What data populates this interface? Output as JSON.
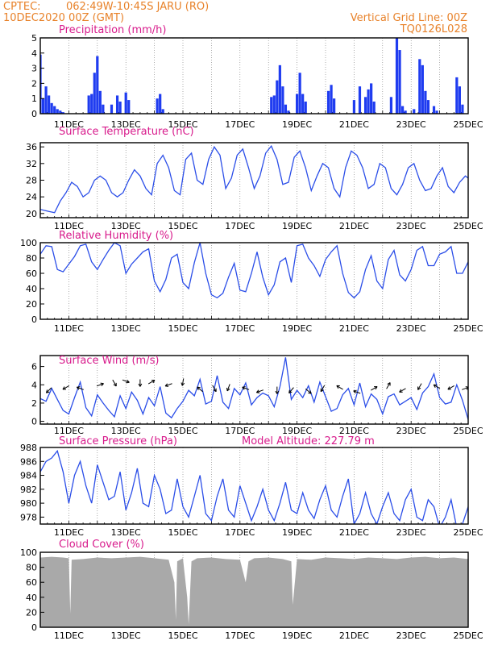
{
  "header": {
    "source": "CPTEC:",
    "location": "062:49W-10:45S   JARU (RO)",
    "datetime": "10DEC2020 00Z (GMT)",
    "grid_note": "Vertical Grid Line: 00Z",
    "model": "TQ0126L028"
  },
  "colors": {
    "header": "#e8822a",
    "title": "#d81b8c",
    "series": "#2b4ee8",
    "bars": "#1f3cf0",
    "cloud": "#a9a9a9"
  },
  "x_labels": [
    "11DEC",
    "13DEC",
    "15DEC",
    "17DEC",
    "19DEC",
    "21DEC",
    "23DEC",
    "25DEC"
  ],
  "chart_data": [
    {
      "id": "precip",
      "type": "bar",
      "title": "Precipitation (mm/h)",
      "ylim": [
        0,
        5
      ],
      "yticks": [
        "0",
        "1",
        "2",
        "3",
        "4",
        "5"
      ],
      "x_range_days": [
        10,
        25
      ],
      "x": [
        10.0,
        10.1,
        10.2,
        10.3,
        10.4,
        10.5,
        10.6,
        10.7,
        10.8,
        11.7,
        11.8,
        11.9,
        12.0,
        12.1,
        12.2,
        12.5,
        12.7,
        12.8,
        13.0,
        13.1,
        14.1,
        14.2,
        14.3,
        18.1,
        18.2,
        18.3,
        18.4,
        18.5,
        18.6,
        18.7,
        19.0,
        19.1,
        19.2,
        19.3,
        20.1,
        20.2,
        20.3,
        21.0,
        21.2,
        21.4,
        21.5,
        21.6,
        21.7,
        22.3,
        22.5,
        22.6,
        22.7,
        22.8,
        23.1,
        23.3,
        23.4,
        23.5,
        23.6,
        23.8,
        23.9,
        24.6,
        24.7,
        24.8
      ],
      "values": [
        3.9,
        1.0,
        1.8,
        1.2,
        0.7,
        0.5,
        0.3,
        0.2,
        0.1,
        1.2,
        1.3,
        2.7,
        3.8,
        1.5,
        0.6,
        0.6,
        1.2,
        0.8,
        1.4,
        0.9,
        1.0,
        1.3,
        0.3,
        1.1,
        1.2,
        2.2,
        3.2,
        1.8,
        0.6,
        0.2,
        1.3,
        2.7,
        1.3,
        0.8,
        1.5,
        1.9,
        1.0,
        0.9,
        1.8,
        1.1,
        1.6,
        2.0,
        0.8,
        1.1,
        5.0,
        4.2,
        0.5,
        0.2,
        0.3,
        3.6,
        3.2,
        1.5,
        0.9,
        0.5,
        0.2,
        2.4,
        1.8,
        0.6
      ]
    },
    {
      "id": "temp",
      "type": "line",
      "title": "Surface Temperature (nC)",
      "ylim": [
        19,
        37
      ],
      "yticks": [
        "20",
        "24",
        "28",
        "32",
        "36"
      ],
      "ytick_values": [
        20,
        24,
        28,
        32,
        36
      ],
      "x": [
        10.0,
        10.3,
        10.5,
        10.7,
        10.9,
        11.1,
        11.3,
        11.5,
        11.7,
        11.9,
        12.1,
        12.3,
        12.5,
        12.7,
        12.9,
        13.1,
        13.3,
        13.5,
        13.7,
        13.9,
        14.1,
        14.3,
        14.5,
        14.7,
        14.9,
        15.1,
        15.3,
        15.5,
        15.7,
        15.9,
        16.1,
        16.3,
        16.5,
        16.7,
        16.9,
        17.1,
        17.3,
        17.5,
        17.7,
        17.9,
        18.1,
        18.3,
        18.5,
        18.7,
        18.9,
        19.1,
        19.3,
        19.5,
        19.7,
        19.9,
        20.1,
        20.3,
        20.5,
        20.7,
        20.9,
        21.1,
        21.3,
        21.5,
        21.7,
        21.9,
        22.1,
        22.3,
        22.5,
        22.7,
        22.9,
        23.1,
        23.3,
        23.5,
        23.7,
        23.9,
        24.1,
        24.3,
        24.5,
        24.7,
        24.9,
        25.0
      ],
      "values": [
        21,
        20.5,
        20.2,
        23,
        25,
        27.5,
        26.5,
        24,
        25,
        28,
        29,
        28,
        25,
        24,
        25,
        28,
        30.5,
        29,
        26,
        24.5,
        32,
        34,
        31,
        25.5,
        24.5,
        33,
        34.5,
        28,
        27,
        33,
        36,
        34,
        26,
        28.5,
        34,
        35.5,
        31,
        26,
        29,
        34.5,
        36.2,
        33,
        27,
        27.5,
        33.5,
        35,
        31,
        25.5,
        29,
        32,
        31,
        26,
        24,
        31,
        35,
        34,
        31,
        26,
        27,
        32,
        31,
        26,
        24.5,
        27,
        31,
        32,
        28,
        25.5,
        26,
        29,
        31,
        26.5,
        25,
        27.5,
        29,
        28.5
      ]
    },
    {
      "id": "rh",
      "type": "line",
      "title": "Relative Humidity (%)",
      "ylim": [
        0,
        100
      ],
      "yticks": [
        "0",
        "20",
        "40",
        "60",
        "80",
        "100"
      ],
      "ytick_values": [
        0,
        20,
        40,
        60,
        80,
        100
      ],
      "x": [
        10.0,
        10.2,
        10.4,
        10.6,
        10.8,
        11.0,
        11.2,
        11.4,
        11.6,
        11.8,
        12.0,
        12.2,
        12.4,
        12.6,
        12.8,
        13.0,
        13.2,
        13.4,
        13.6,
        13.8,
        14.0,
        14.2,
        14.4,
        14.6,
        14.8,
        15.0,
        15.2,
        15.4,
        15.6,
        15.8,
        16.0,
        16.2,
        16.4,
        16.6,
        16.8,
        17.0,
        17.2,
        17.4,
        17.6,
        17.8,
        18.0,
        18.2,
        18.4,
        18.6,
        18.8,
        19.0,
        19.2,
        19.4,
        19.6,
        19.8,
        20.0,
        20.2,
        20.4,
        20.6,
        20.8,
        21.0,
        21.2,
        21.4,
        21.6,
        21.8,
        22.0,
        22.2,
        22.4,
        22.6,
        22.8,
        23.0,
        23.2,
        23.4,
        23.6,
        23.8,
        24.0,
        24.2,
        24.4,
        24.6,
        24.8,
        25.0
      ],
      "values": [
        85,
        96,
        95,
        65,
        62,
        72,
        82,
        96,
        98,
        75,
        65,
        78,
        90,
        100,
        96,
        60,
        72,
        80,
        88,
        92,
        50,
        36,
        52,
        80,
        85,
        48,
        40,
        74,
        100,
        60,
        32,
        28,
        34,
        55,
        73,
        38,
        36,
        60,
        88,
        55,
        32,
        45,
        75,
        80,
        48,
        96,
        98,
        80,
        70,
        56,
        78,
        88,
        96,
        60,
        35,
        28,
        36,
        65,
        83,
        50,
        40,
        78,
        90,
        58,
        50,
        65,
        90,
        95,
        70,
        70,
        85,
        88,
        95,
        60,
        60,
        75
      ]
    },
    {
      "id": "wind",
      "type": "line",
      "title": "Surface Wind (m/s)",
      "ylim": [
        -0.3,
        7.2
      ],
      "yticks": [
        "0",
        "2",
        "4",
        "6"
      ],
      "ytick_values": [
        0,
        2,
        4,
        6
      ],
      "x": [
        10.0,
        10.2,
        10.4,
        10.6,
        10.8,
        11.0,
        11.2,
        11.4,
        11.6,
        11.8,
        12.0,
        12.2,
        12.4,
        12.6,
        12.8,
        13.0,
        13.2,
        13.4,
        13.6,
        13.8,
        14.0,
        14.2,
        14.4,
        14.6,
        14.8,
        15.0,
        15.2,
        15.4,
        15.6,
        15.8,
        16.0,
        16.2,
        16.4,
        16.6,
        16.8,
        17.0,
        17.2,
        17.4,
        17.6,
        17.8,
        18.0,
        18.2,
        18.4,
        18.6,
        18.8,
        19.0,
        19.2,
        19.4,
        19.6,
        19.8,
        20.0,
        20.2,
        20.4,
        20.6,
        20.8,
        21.0,
        21.2,
        21.4,
        21.6,
        21.8,
        22.0,
        22.2,
        22.4,
        22.6,
        22.8,
        23.0,
        23.2,
        23.4,
        23.6,
        23.8,
        24.0,
        24.2,
        24.4,
        24.6,
        24.8,
        25.0
      ],
      "values": [
        2.5,
        2.2,
        3.6,
        2.4,
        1.2,
        0.8,
        2.6,
        4.3,
        1.5,
        0.6,
        2.9,
        2.0,
        1.2,
        0.5,
        2.8,
        1.4,
        3.2,
        2.3,
        0.8,
        2.6,
        1.7,
        3.8,
        0.9,
        0.4,
        1.4,
        2.2,
        3.4,
        2.8,
        4.6,
        1.9,
        2.2,
        5.0,
        2.1,
        1.4,
        3.6,
        2.9,
        4.2,
        1.8,
        2.6,
        3.1,
        2.8,
        1.6,
        3.8,
        7.0,
        2.4,
        3.4,
        2.6,
        3.9,
        2.1,
        4.3,
        2.7,
        1.1,
        1.4,
        2.9,
        3.6,
        1.8,
        4.2,
        1.6,
        3.0,
        2.4,
        0.8,
        2.7,
        3.0,
        1.8,
        2.2,
        2.6,
        1.3,
        3.1,
        3.8,
        5.2,
        2.6,
        1.9,
        2.1,
        4.0,
        2.3,
        0.2
      ],
      "arrows": [
        {
          "x": 10.3,
          "y": 3.4,
          "dir": 225
        },
        {
          "x": 10.9,
          "y": 3.7,
          "dir": 210
        },
        {
          "x": 11.4,
          "y": 3.6,
          "dir": 160
        },
        {
          "x": 12.1,
          "y": 4.0,
          "dir": 20
        },
        {
          "x": 12.6,
          "y": 4.2,
          "dir": 300
        },
        {
          "x": 13.0,
          "y": 4.4,
          "dir": 340
        },
        {
          "x": 13.5,
          "y": 4.2,
          "dir": 270
        },
        {
          "x": 13.9,
          "y": 4.3,
          "dir": 30
        },
        {
          "x": 14.5,
          "y": 4.0,
          "dir": 200
        },
        {
          "x": 15.0,
          "y": 4.3,
          "dir": 260
        },
        {
          "x": 15.6,
          "y": 3.5,
          "dir": 140
        },
        {
          "x": 16.1,
          "y": 3.6,
          "dir": 300
        },
        {
          "x": 16.6,
          "y": 3.7,
          "dir": 250
        },
        {
          "x": 17.2,
          "y": 3.6,
          "dir": 160
        },
        {
          "x": 17.7,
          "y": 3.3,
          "dir": 200
        },
        {
          "x": 18.3,
          "y": 3.4,
          "dir": 270
        },
        {
          "x": 18.8,
          "y": 3.4,
          "dir": 230
        },
        {
          "x": 19.4,
          "y": 3.3,
          "dir": 320
        },
        {
          "x": 19.9,
          "y": 3.6,
          "dir": 240
        },
        {
          "x": 20.5,
          "y": 3.7,
          "dir": 150
        },
        {
          "x": 21.1,
          "y": 3.2,
          "dir": 160
        },
        {
          "x": 21.7,
          "y": 3.6,
          "dir": 30
        },
        {
          "x": 22.2,
          "y": 3.9,
          "dir": 60
        },
        {
          "x": 22.7,
          "y": 3.4,
          "dir": 210
        },
        {
          "x": 23.3,
          "y": 3.8,
          "dir": 240
        },
        {
          "x": 23.9,
          "y": 3.8,
          "dir": 150
        },
        {
          "x": 24.4,
          "y": 3.7,
          "dir": 210
        },
        {
          "x": 24.9,
          "y": 3.6,
          "dir": 20
        }
      ]
    },
    {
      "id": "pressure",
      "type": "line",
      "title": "Surface Pressure (hPa)",
      "annotation": "Model Altitude: 227.79 m",
      "ylim": [
        977,
        988
      ],
      "yticks": [
        "978",
        "980",
        "982",
        "984",
        "986",
        "988"
      ],
      "ytick_values": [
        978,
        980,
        982,
        984,
        986,
        988
      ],
      "x": [
        10.0,
        10.2,
        10.4,
        10.6,
        10.8,
        11.0,
        11.2,
        11.4,
        11.6,
        11.8,
        12.0,
        12.2,
        12.4,
        12.6,
        12.8,
        13.0,
        13.2,
        13.4,
        13.6,
        13.8,
        14.0,
        14.2,
        14.4,
        14.6,
        14.8,
        15.0,
        15.2,
        15.4,
        15.6,
        15.8,
        16.0,
        16.2,
        16.4,
        16.6,
        16.8,
        17.0,
        17.2,
        17.4,
        17.6,
        17.8,
        18.0,
        18.2,
        18.4,
        18.6,
        18.8,
        19.0,
        19.2,
        19.4,
        19.6,
        19.8,
        20.0,
        20.2,
        20.4,
        20.6,
        20.8,
        21.0,
        21.2,
        21.4,
        21.6,
        21.8,
        22.0,
        22.2,
        22.4,
        22.6,
        22.8,
        23.0,
        23.2,
        23.4,
        23.6,
        23.8,
        24.0,
        24.2,
        24.4,
        24.6,
        24.8,
        25.0
      ],
      "values": [
        984.5,
        986.0,
        986.5,
        987.5,
        984.5,
        980.0,
        984.0,
        986.0,
        982.5,
        980.0,
        985.5,
        983.0,
        980.5,
        981.0,
        984.5,
        979.0,
        981.5,
        985.0,
        980.0,
        979.5,
        984.0,
        982.0,
        978.5,
        979.0,
        983.5,
        979.5,
        978.0,
        981.0,
        984.0,
        978.5,
        977.5,
        981.0,
        983.5,
        979.0,
        978.0,
        982.5,
        980.0,
        977.5,
        979.5,
        982.0,
        979.0,
        977.5,
        980.0,
        983.0,
        979.0,
        978.5,
        981.5,
        979.0,
        977.8,
        980.5,
        982.5,
        979.0,
        978.0,
        981.0,
        983.5,
        977.0,
        978.5,
        981.5,
        978.5,
        977.0,
        979.5,
        981.5,
        978.5,
        977.5,
        980.5,
        982.0,
        978.0,
        977.5,
        980.5,
        979.5,
        976.5,
        978.0,
        980.5,
        976.5,
        977.0,
        979.5
      ]
    },
    {
      "id": "cloud",
      "type": "area",
      "title": "Cloud Cover (%)",
      "ylim": [
        0,
        100
      ],
      "yticks": [
        "0",
        "20",
        "40",
        "60",
        "80",
        "100"
      ],
      "ytick_values": [
        0,
        20,
        40,
        60,
        80,
        100
      ],
      "x": [
        10.0,
        10.4,
        10.8,
        11.0,
        11.05,
        11.1,
        11.5,
        12.0,
        12.5,
        13.0,
        13.5,
        14.0,
        14.5,
        14.7,
        14.75,
        14.8,
        15.0,
        15.15,
        15.2,
        15.3,
        15.5,
        16.0,
        16.5,
        17.0,
        17.2,
        17.3,
        17.5,
        18.0,
        18.5,
        18.8,
        18.85,
        19.0,
        19.5,
        20.0,
        20.5,
        21.0,
        21.5,
        22.0,
        22.5,
        23.0,
        23.5,
        24.0,
        24.5,
        25.0
      ],
      "values": [
        93,
        94,
        93,
        92,
        18,
        90,
        91,
        93,
        92,
        93,
        94,
        92,
        90,
        60,
        10,
        88,
        92,
        40,
        4,
        88,
        92,
        93,
        91,
        90,
        60,
        88,
        92,
        93,
        91,
        88,
        30,
        91,
        90,
        93,
        92,
        91,
        93,
        92,
        91,
        93,
        94,
        92,
        93,
        91
      ]
    }
  ]
}
